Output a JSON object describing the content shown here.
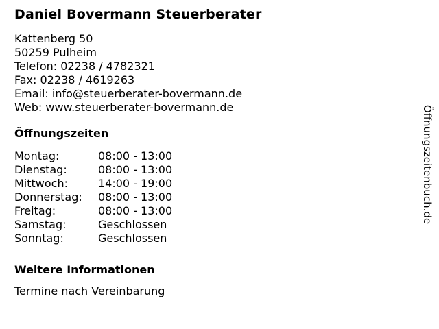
{
  "business": {
    "title": "Daniel Bovermann Steuerberater",
    "contact": {
      "address_line1": "Kattenberg 50",
      "address_line2": "50259 Pulheim",
      "phone": "Telefon: 02238 / 4782321",
      "fax": "Fax: 02238 / 4619263",
      "email": "Email: info@steuerberater-bovermann.de",
      "web": "Web: www.steuerberater-bovermann.de"
    }
  },
  "hours": {
    "heading": "Öffnungszeiten",
    "rows": [
      {
        "day": "Montag:",
        "time": "08:00 - 13:00"
      },
      {
        "day": "Dienstag:",
        "time": "08:00 - 13:00"
      },
      {
        "day": "Mittwoch:",
        "time": "14:00 - 19:00"
      },
      {
        "day": "Donnerstag:",
        "time": "08:00 - 13:00"
      },
      {
        "day": "Freitag:",
        "time": "08:00 - 13:00"
      },
      {
        "day": "Samstag:",
        "time": "Geschlossen"
      },
      {
        "day": "Sonntag:",
        "time": "Geschlossen"
      }
    ]
  },
  "more_info": {
    "heading": "Weitere Informationen",
    "text": "Termine nach Vereinbarung"
  },
  "banner": {
    "text": "Öffnungszeitenbuch.de"
  },
  "colors": {
    "text": "#000000",
    "background": "#ffffff"
  }
}
